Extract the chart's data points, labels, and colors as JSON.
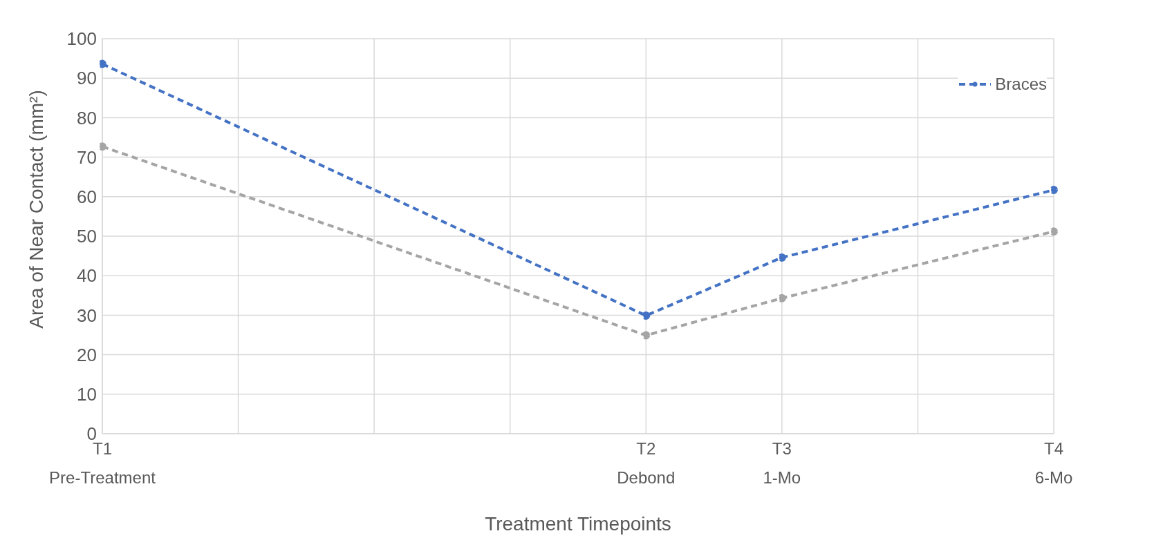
{
  "chart_data": {
    "type": "line",
    "xlabel": "Treatment Timepoints",
    "ylabel": "Area of Near Contact (mm²)",
    "categories": [
      "T1\nPre-Treatment",
      null,
      null,
      null,
      "T2\nDebond",
      "T3\n1-Mo",
      null,
      "T4\n6-Mo"
    ],
    "series": [
      {
        "name": "Braces",
        "color": "#4472c4",
        "values": [
          93.6,
          null,
          null,
          null,
          29.9,
          44.6,
          null,
          61.7
        ]
      },
      {
        "color": "#a5a5a5",
        "values": [
          72.7,
          null,
          null,
          null,
          24.9,
          34.3,
          null,
          51.2
        ]
      }
    ],
    "ylim": [
      0,
      100
    ],
    "yticks": [
      0,
      10,
      20,
      30,
      40,
      50,
      60,
      70,
      80,
      90,
      100
    ],
    "grid": true,
    "legend": "top right",
    "marker": "circle",
    "line_style": "dashed"
  }
}
